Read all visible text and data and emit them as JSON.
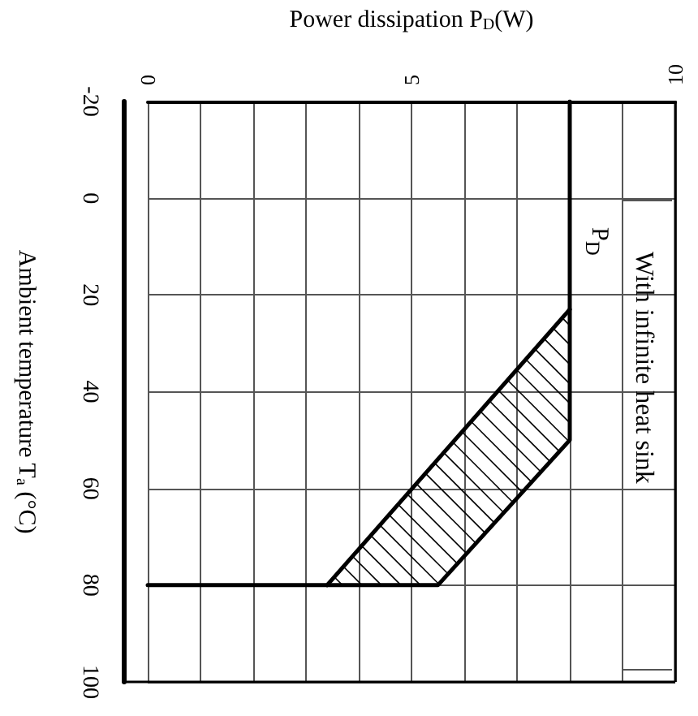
{
  "chart_data": {
    "type": "line",
    "xlabel": "Power dissipation P$_{D}$(W)",
    "ylabel": "Ambient temperature T$_{a}$ (°C)",
    "annotations": [
      "With infinite heat sink"
    ],
    "xlim": [
      0,
      10
    ],
    "xticks": [
      0,
      {
        "value": 1,
        "label": null
      },
      {
        "value": 2,
        "label": null
      },
      {
        "value": 3,
        "label": null
      },
      {
        "value": 4,
        "label": null
      },
      5,
      {
        "value": 6,
        "label": null
      },
      {
        "value": 7,
        "label": null
      },
      {
        "value": 8,
        "label": null
      },
      {
        "value": 9,
        "label": null
      },
      10
    ],
    "ylim": [
      100,
      -20
    ],
    "yticks": [
      -20,
      0,
      20,
      40,
      60,
      80,
      100
    ],
    "grid": true,
    "legend": false,
    "marker": "none",
    "series": [
      {
        "name": "P$_{D}$",
        "color": "#000000",
        "x": [
          8,
          8,
          5.5,
          0
        ],
        "values": [
          -20,
          50,
          80,
          80
        ]
      },
      {
        "color": "#000000",
        "x": [
          8,
          3.4
        ],
        "values": [
          23,
          80
        ]
      }
    ]
  }
}
